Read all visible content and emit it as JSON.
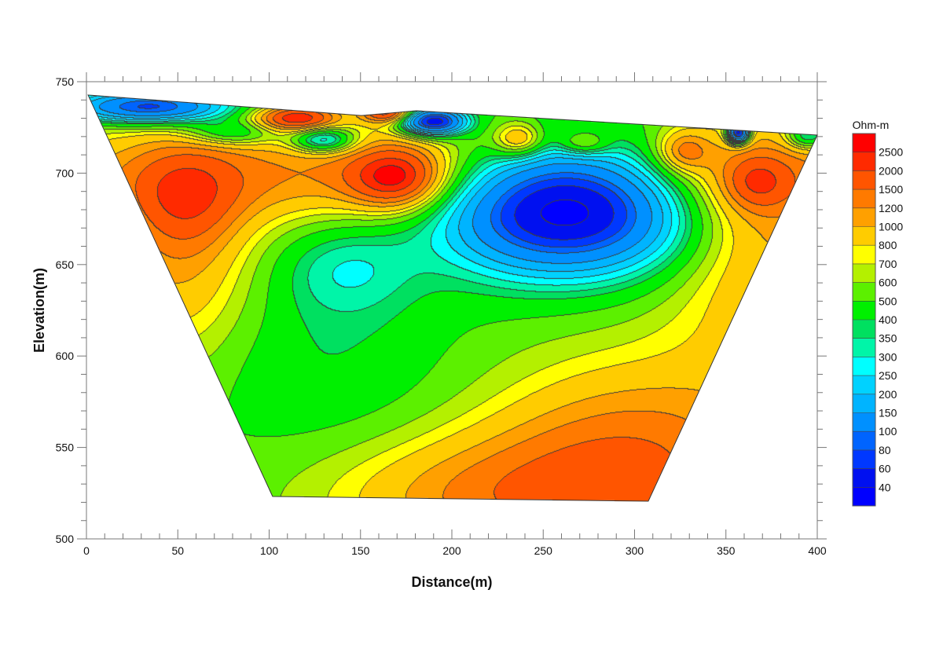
{
  "chart_data": {
    "type": "heatmap",
    "subtype": "filled-contour cross-section",
    "xlabel": "Distance(m)",
    "ylabel": "Elevation(m)",
    "xlim": [
      0,
      400
    ],
    "ylim": [
      500,
      750
    ],
    "x_ticks": [
      0,
      50,
      100,
      150,
      200,
      250,
      300,
      350,
      400
    ],
    "y_ticks": [
      500,
      550,
      600,
      650,
      700,
      750
    ],
    "colorbar": {
      "title": "Ohm-m",
      "levels": [
        2500,
        2000,
        1500,
        1200,
        1000,
        800,
        700,
        600,
        500,
        400,
        350,
        300,
        250,
        200,
        150,
        100,
        80,
        60,
        40
      ],
      "colors": [
        "#ff0000",
        "#ff2a00",
        "#ff5500",
        "#ff7a00",
        "#ffa000",
        "#ffcc00",
        "#ffff00",
        "#b4f000",
        "#5cf000",
        "#00f000",
        "#00e060",
        "#00f5a8",
        "#00ffff",
        "#00d2ff",
        "#00b4ff",
        "#0090ff",
        "#0064ff",
        "#0038ff",
        "#0010f0",
        "#0000ff"
      ]
    },
    "section_outline": [
      [
        0.9,
        742.7
      ],
      [
        150.5,
        731.5
      ],
      [
        180.6,
        734.1
      ],
      [
        400,
        720.8
      ],
      [
        307.5,
        520.6
      ],
      [
        101.9,
        523.2
      ]
    ],
    "background_ohm_m": 500,
    "anomalies": [
      {
        "x": 200,
        "elev": 700,
        "sx": 200,
        "se": 20,
        "value": 1256
      },
      {
        "x": 300,
        "elev": 540,
        "sx": 60,
        "se": 42,
        "value": 1409
      },
      {
        "x": 210,
        "elev": 522,
        "sx": 65,
        "se": 25,
        "value": 998
      },
      {
        "x": 372,
        "elev": 655,
        "sx": 38,
        "se": 50,
        "value": 998
      },
      {
        "x": 50,
        "elev": 650,
        "sx": 32,
        "se": 40,
        "value": 998
      },
      {
        "x": 55,
        "elev": 685,
        "sx": 20,
        "se": 20,
        "value": 889
      },
      {
        "x": 170,
        "elev": 697,
        "sx": 18,
        "se": 12,
        "value": 1581
      },
      {
        "x": 262,
        "elev": 683,
        "sx": 45,
        "se": 24,
        "value": 20
      },
      {
        "x": 143,
        "elev": 648,
        "sx": 26,
        "se": 18,
        "value": 315
      },
      {
        "x": 130,
        "elev": 600,
        "sx": 45,
        "se": 35,
        "value": 397
      },
      {
        "x": 35,
        "elev": 736,
        "sx": 30,
        "se": 6,
        "value": 63
      },
      {
        "x": 115,
        "elev": 730,
        "sx": 16,
        "se": 5,
        "value": 1990
      },
      {
        "x": 130,
        "elev": 718,
        "sx": 12,
        "se": 5,
        "value": 158
      },
      {
        "x": 237,
        "elev": 718,
        "sx": 10,
        "se": 7,
        "value": 1256
      },
      {
        "x": 272,
        "elev": 716,
        "sx": 10,
        "se": 5,
        "value": 998
      },
      {
        "x": 327,
        "elev": 712,
        "sx": 10,
        "se": 8,
        "value": 998
      },
      {
        "x": 367,
        "elev": 695,
        "sx": 12,
        "se": 10,
        "value": 889
      },
      {
        "x": 190,
        "elev": 728,
        "sx": 12,
        "se": 5,
        "value": 40
      },
      {
        "x": 357,
        "elev": 722,
        "sx": 4,
        "se": 4,
        "value": 32
      },
      {
        "x": 395,
        "elev": 720,
        "sx": 8,
        "se": 5,
        "value": 199
      },
      {
        "x": 80,
        "elev": 722,
        "sx": 18,
        "se": 5,
        "value": 250
      },
      {
        "x": 165,
        "elev": 733,
        "sx": 10,
        "se": 4,
        "value": 1990
      }
    ]
  }
}
